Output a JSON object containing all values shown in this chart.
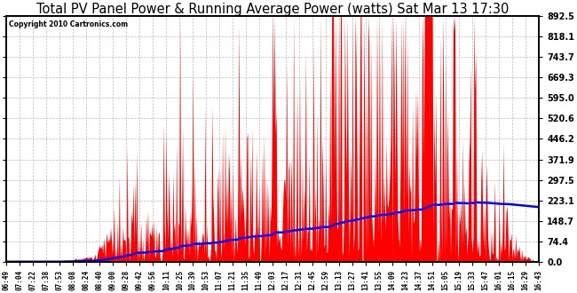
{
  "title": "Total PV Panel Power & Running Average Power (watts) Sat Mar 13 17:30",
  "copyright": "Copyright 2010 Cartronics.com",
  "yticks": [
    0.0,
    74.4,
    148.7,
    223.1,
    297.5,
    371.9,
    446.2,
    520.6,
    595.0,
    669.3,
    743.7,
    818.1,
    892.5
  ],
  "ymax": 892.5,
  "bg_color": "#ffffff",
  "plot_bg": "#ffffff",
  "bar_color": "#ff0000",
  "avg_color": "#0000ff",
  "grid_color": "#bbbbbb",
  "title_fontsize": 10.5,
  "xtick_labels": [
    "06:49",
    "07:04",
    "07:22",
    "07:38",
    "07:53",
    "08:08",
    "08:24",
    "08:40",
    "09:00",
    "09:28",
    "09:42",
    "09:56",
    "10:11",
    "10:25",
    "10:39",
    "10:53",
    "11:07",
    "11:21",
    "11:35",
    "11:49",
    "12:03",
    "12:17",
    "12:31",
    "12:45",
    "12:59",
    "13:13",
    "13:27",
    "13:41",
    "13:55",
    "14:09",
    "14:23",
    "14:37",
    "14:51",
    "15:05",
    "15:19",
    "15:33",
    "15:47",
    "16:01",
    "16:15",
    "16:29",
    "16:43"
  ]
}
